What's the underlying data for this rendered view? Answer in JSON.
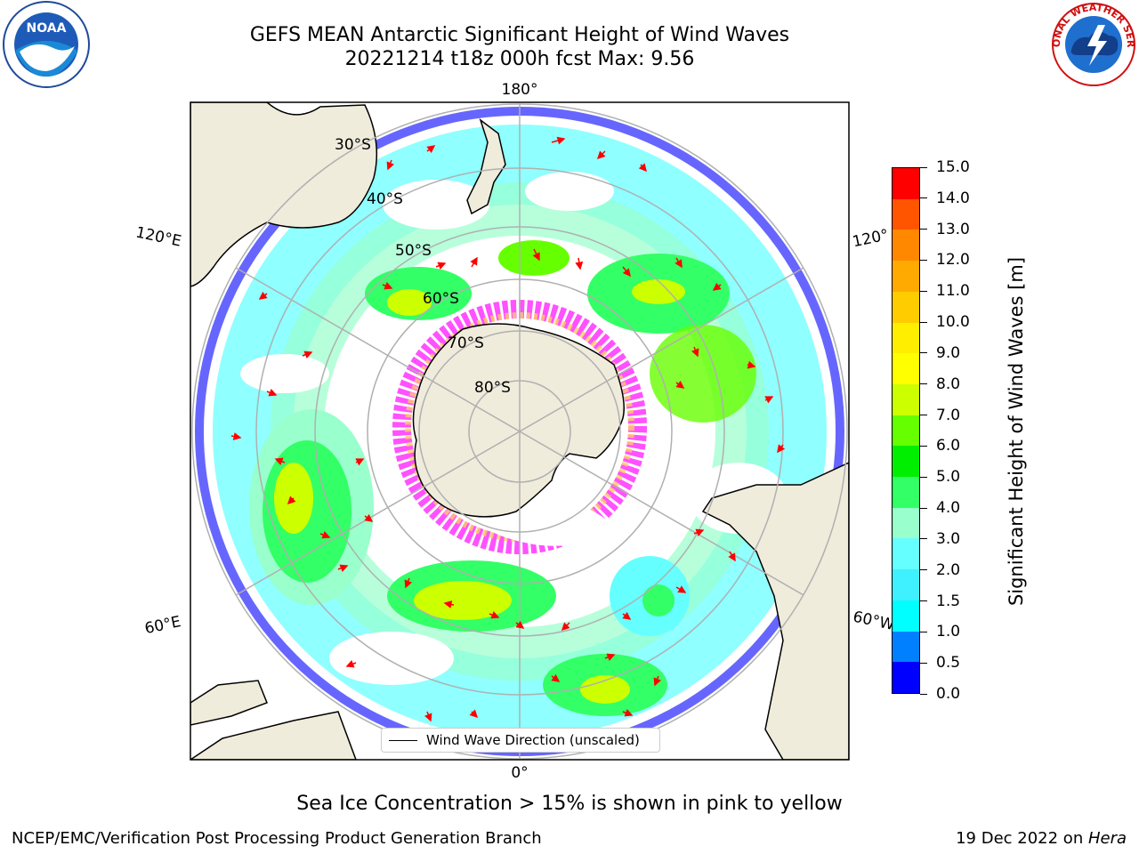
{
  "title": {
    "line1": "GEFS MEAN Antarctic Significant Height of Wind Waves",
    "line2": "20221214 t18z 000h fcst   Max: 9.56"
  },
  "map": {
    "projection": "south polar stereographic",
    "lon_labels": [
      "180°",
      "120°E",
      "120°",
      "60°E",
      "60°W",
      "0°"
    ],
    "lat_labels": [
      "30°S",
      "40°S",
      "50°S",
      "60°S",
      "70°S",
      "80°S"
    ],
    "legend_label": "Wind Wave Direction (unscaled)",
    "land_color": "#efecdc",
    "sea_ice_colors": [
      "#ff33ff",
      "#ff99cc",
      "#ffcc66",
      "#ffff99"
    ],
    "arrow_color": "#ff0000"
  },
  "colorbar": {
    "label": "Significant Height of Wind Waves [m]",
    "ticks": [
      "0.0",
      "0.5",
      "1.0",
      "1.5",
      "2.0",
      "3.0",
      "4.0",
      "5.0",
      "6.0",
      "7.0",
      "8.0",
      "9.0",
      "10.0",
      "11.0",
      "12.0",
      "13.0",
      "14.0",
      "15.0"
    ],
    "colors": [
      "#0000ff",
      "#0080ff",
      "#00ffff",
      "#3ff0ff",
      "#66ffff",
      "#99ffcc",
      "#33ff66",
      "#00ee00",
      "#66ff00",
      "#ccff00",
      "#ffff00",
      "#ffee00",
      "#ffcc00",
      "#ffaa00",
      "#ff8800",
      "#ff5500",
      "#ff0000"
    ]
  },
  "chart_data": {
    "type": "heatmap",
    "variable": "Significant Height of Wind Waves",
    "units": "m",
    "range": [
      0,
      15
    ],
    "max_value": 9.56,
    "init": "20221214 t18z",
    "forecast_hour": "000h"
  },
  "note": "Sea Ice Concentration > 15% is shown in pink to yellow",
  "footer": {
    "left": "NCEP/EMC/Verification Post Processing Product Generation Branch",
    "date": "19 Dec 2022 on ",
    "host": "Hera"
  },
  "logos": {
    "noaa": "NOAA",
    "nws": "NATIONAL WEATHER SERVICE"
  }
}
